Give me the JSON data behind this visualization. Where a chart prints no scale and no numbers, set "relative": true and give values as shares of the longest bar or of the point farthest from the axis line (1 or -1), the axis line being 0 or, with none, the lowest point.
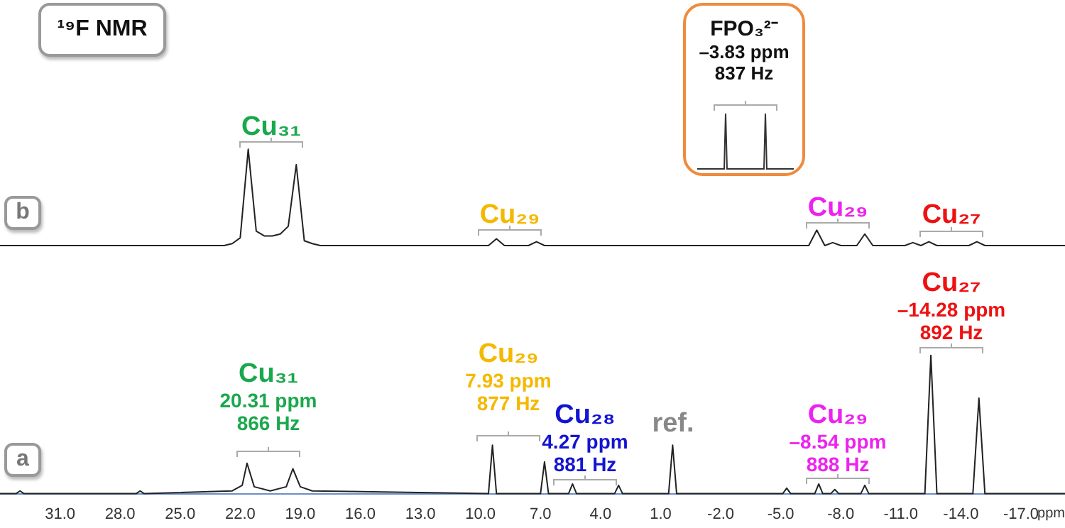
{
  "chart_data": [
    {
      "type": "line",
      "title": "¹⁹F NMR",
      "relative": true,
      "marker": "none",
      "tick_labels": false,
      "categories": [
        null,
        null,
        null,
        null,
        null,
        null,
        null,
        null,
        null,
        null,
        null,
        null,
        null,
        null,
        null,
        null,
        null,
        null,
        null,
        null,
        null,
        null,
        null,
        null,
        null,
        null,
        null,
        null,
        null,
        null,
        null,
        null,
        null,
        null,
        null,
        null,
        null,
        null,
        null,
        null,
        null,
        null,
        null,
        null,
        null,
        null,
        null,
        null,
        null,
        null,
        null,
        null,
        null,
        null,
        null,
        null,
        null,
        null,
        null,
        null,
        null,
        null,
        null,
        null,
        null,
        null,
        null,
        null,
        null,
        null,
        null,
        null,
        null,
        null,
        null,
        null,
        null,
        null,
        null,
        null,
        null,
        null,
        null,
        null,
        null,
        null,
        null,
        null,
        null,
        null,
        null,
        null,
        null,
        null,
        null,
        null,
        null,
        null,
        null,
        null,
        null,
        null,
        null,
        null,
        null,
        null,
        null,
        null,
        null,
        null,
        null,
        null,
        null,
        null,
        null,
        null,
        null,
        null,
        null,
        null,
        null,
        null,
        null,
        null,
        null,
        null,
        null,
        null,
        null,
        null,
        null,
        null,
        null,
        null
      ],
      "series": [
        {
          "color": "#222222",
          "values": [
            0,
            0,
            0,
            0,
            0,
            0,
            0,
            0,
            0,
            0,
            0,
            0,
            0,
            0,
            0,
            0,
            0,
            0,
            0,
            0,
            0,
            0,
            0,
            0,
            0,
            0,
            0,
            0,
            0,
            0.02,
            0.08,
            1.0,
            0.15,
            0.1,
            0.1,
            0.12,
            0.2,
            0.84,
            0.05,
            0.02,
            0,
            0,
            0,
            0,
            0,
            0,
            0,
            0,
            0,
            0,
            0,
            0,
            0,
            0,
            0,
            0,
            0,
            0,
            0,
            0,
            0,
            0,
            0.07,
            0,
            0,
            0,
            0,
            0.04,
            0,
            0,
            0,
            0,
            0,
            0,
            0,
            0,
            0,
            0,
            0,
            0,
            0,
            0,
            0,
            0,
            0,
            0,
            0,
            0,
            0,
            0,
            0,
            0,
            0,
            0,
            0,
            0,
            0,
            0,
            0,
            0,
            0,
            0,
            0.16,
            0,
            0.03,
            0,
            0,
            0,
            0.12,
            0,
            0,
            0,
            0,
            0,
            0.03,
            0,
            0.04,
            0,
            0,
            0,
            0,
            0,
            0.04,
            0,
            0,
            0,
            0,
            0,
            0,
            0,
            0,
            0,
            0,
            0
          ]
        }
      ],
      "annotations": [
        "b",
        "FPO₃²⁻\n–3.83 ppm\n837 Hz",
        "Cu₃₁",
        "Cu₂₉",
        "Cu₂₉",
        "Cu₂₇"
      ]
    },
    {
      "type": "line",
      "xlabel": "ppm",
      "relative": true,
      "marker": "none",
      "tick_labels": "x",
      "xlim": [
        34,
        -19.2
      ],
      "xticks": [
        {
          "value": 31,
          "label": "31.0"
        },
        {
          "value": 28,
          "label": "28.0"
        },
        {
          "value": 25,
          "label": "25.0"
        },
        {
          "value": 22,
          "label": "22.0"
        },
        {
          "value": 19,
          "label": "19.0"
        },
        {
          "value": 16,
          "label": "16.0"
        },
        {
          "value": 13,
          "label": "13.0"
        },
        {
          "value": 10,
          "label": "10.0"
        },
        {
          "value": 7,
          "label": "7.0"
        },
        {
          "value": 4,
          "label": "4.0"
        },
        {
          "value": 1,
          "label": "1.0"
        },
        {
          "value": -2,
          "label": "-2.0"
        },
        {
          "value": -5,
          "label": "-5.0"
        },
        {
          "value": -8,
          "label": "-8.0"
        },
        {
          "value": -11,
          "label": "-11.0"
        },
        {
          "value": -14,
          "label": "-14.0"
        },
        {
          "value": -17,
          "label": "-17.0"
        }
      ],
      "series": [
        {
          "color": "#222222",
          "x": [
            34,
            33.2,
            33.0,
            32.8,
            27.2,
            27.0,
            26.8,
            22.4,
            21.9,
            21.66,
            21.3,
            20.5,
            19.7,
            19.37,
            19.0,
            18.4,
            9.6,
            9.4,
            9.2,
            7.0,
            6.8,
            6.6,
            5.6,
            5.4,
            5.2,
            3.3,
            3.1,
            2.9,
            0.6,
            0.4,
            0.2,
            -5.1,
            -5.3,
            -5.5,
            -6.7,
            -6.9,
            -7.1,
            -7.5,
            -7.7,
            -7.9,
            -9.0,
            -9.2,
            -9.4,
            -12.2,
            -12.5,
            -12.8,
            -14.6,
            -14.9,
            -15.2,
            -19.2
          ],
          "values": [
            0,
            0,
            0.02,
            0,
            0,
            0.02,
            0,
            0.02,
            0.06,
            0.22,
            0.05,
            0.02,
            0.05,
            0.18,
            0.05,
            0.02,
            0,
            0.35,
            0,
            0,
            0.23,
            0,
            0,
            0.07,
            0,
            0,
            0.06,
            0,
            0,
            0.35,
            0,
            0,
            0.04,
            0,
            0,
            0.07,
            0,
            0,
            0.03,
            0,
            0,
            0.06,
            0,
            0,
            1.0,
            0,
            0,
            0.69,
            0,
            0
          ]
        }
      ],
      "annotations": [
        "a",
        "Cu₃₁\n20.31 ppm\n866 Hz",
        "Cu₂₉\n7.93 ppm\n877 Hz",
        "Cu₂₈\n4.27 ppm\n881 Hz",
        "ref.",
        "Cu₂₉\n–8.54 ppm\n888 Hz",
        "Cu₂₇\n–14.28 ppm\n892 Hz"
      ]
    }
  ]
}
